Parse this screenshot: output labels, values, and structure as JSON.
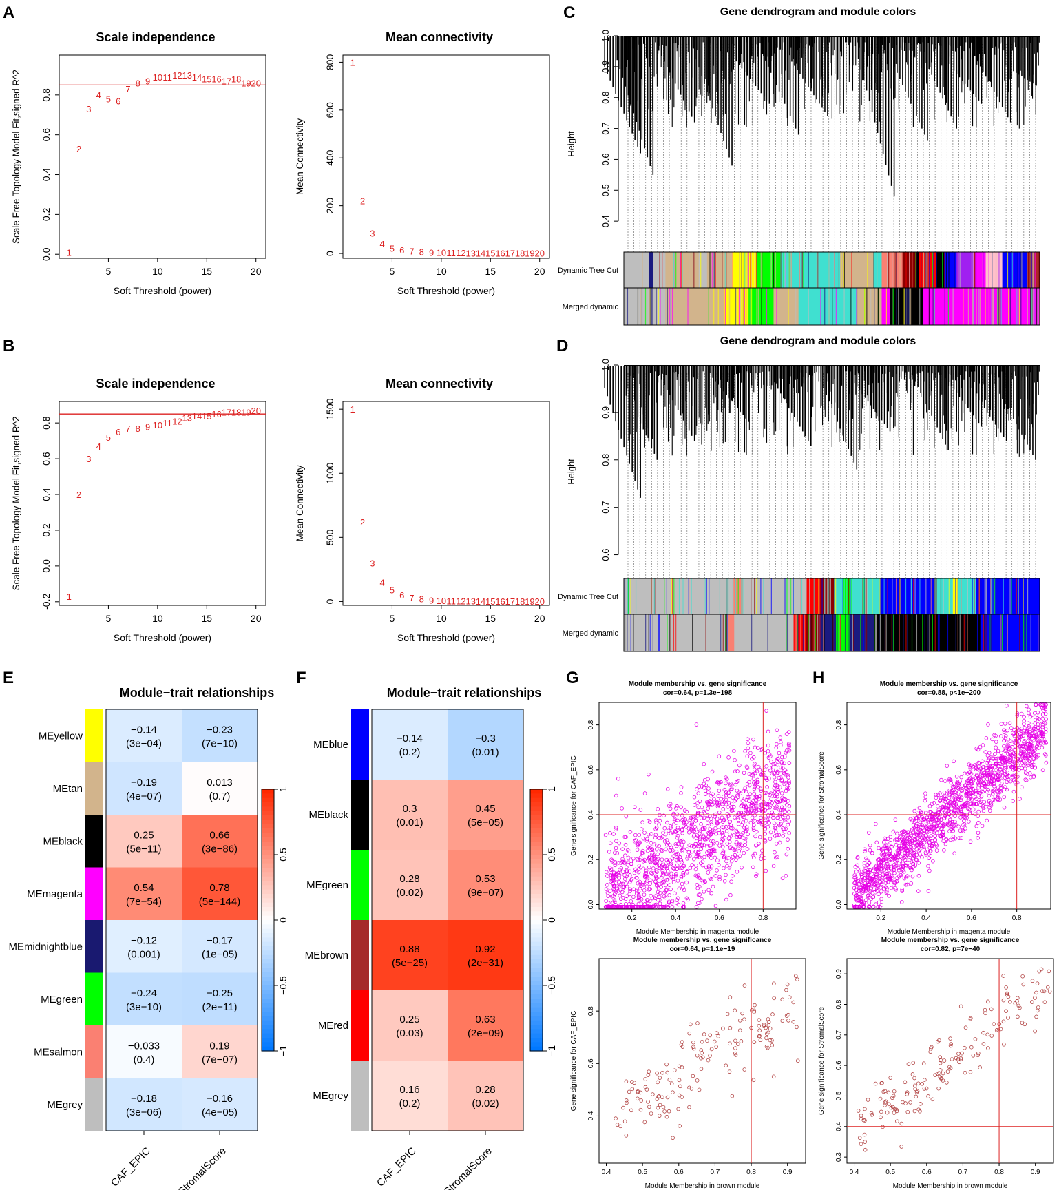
{
  "panel_letters": {
    "A": "A",
    "B": "B",
    "C": "C",
    "D": "D",
    "E": "E",
    "F": "F",
    "G": "G",
    "H": "H"
  },
  "colors": {
    "red": "#dd2222",
    "magenta": "#e600e6",
    "brown_pt": "#b04040",
    "axis": "#000000"
  },
  "chart_data": [
    {
      "id": "A_scale",
      "type": "scatter",
      "title": "Scale independence",
      "xlabel": "Soft Threshold (power)",
      "ylabel": "Scale Free Topology Model Fit,signed R^2",
      "xlim": [
        0,
        21
      ],
      "ylim": [
        -0.02,
        1.0
      ],
      "hline": 0.85,
      "xticks": [
        5,
        10,
        15,
        20
      ],
      "yticks": [
        0.0,
        0.2,
        0.4,
        0.6,
        0.8
      ],
      "ytick_labels": [
        "0.0",
        "0.2",
        "0.4",
        "0.6",
        "0.8"
      ],
      "x": [
        1,
        2,
        3,
        4,
        5,
        6,
        7,
        8,
        9,
        10,
        11,
        12,
        13,
        14,
        15,
        16,
        17,
        18,
        19,
        20
      ],
      "y": [
        0.01,
        0.53,
        0.73,
        0.8,
        0.78,
        0.77,
        0.83,
        0.86,
        0.87,
        0.89,
        0.89,
        0.9,
        0.9,
        0.89,
        0.88,
        0.88,
        0.87,
        0.88,
        0.86,
        0.86
      ]
    },
    {
      "id": "A_conn",
      "type": "scatter",
      "title": "Mean connectivity",
      "xlabel": "Soft Threshold (power)",
      "ylabel": "Mean Connectivity",
      "xlim": [
        0,
        21
      ],
      "ylim": [
        -20,
        830
      ],
      "xticks": [
        5,
        10,
        15,
        20
      ],
      "yticks": [
        0,
        200,
        400,
        600,
        800
      ],
      "ytick_labels": [
        "0",
        "200",
        "400",
        "600",
        "800"
      ],
      "x": [
        1,
        2,
        3,
        4,
        5,
        6,
        7,
        8,
        9,
        10,
        11,
        12,
        13,
        14,
        15,
        16,
        17,
        18,
        19,
        20
      ],
      "y": [
        800,
        220,
        85,
        40,
        22,
        14,
        10,
        7,
        5,
        4,
        3,
        3,
        2,
        2,
        2,
        1,
        1,
        1,
        1,
        1
      ]
    },
    {
      "id": "B_scale",
      "type": "scatter",
      "title": "Scale independence",
      "xlabel": "Soft Threshold (power)",
      "ylabel": "Scale Free Topology Model Fit,signed R^2",
      "xlim": [
        0,
        21
      ],
      "ylim": [
        -0.22,
        0.92
      ],
      "hline": 0.85,
      "xticks": [
        5,
        10,
        15,
        20
      ],
      "yticks": [
        -0.2,
        0.0,
        0.2,
        0.4,
        0.6,
        0.8
      ],
      "ytick_labels": [
        "-0.2",
        "0.0",
        "0.2",
        "0.4",
        "0.6",
        "0.8"
      ],
      "x": [
        1,
        2,
        3,
        4,
        5,
        6,
        7,
        8,
        9,
        10,
        11,
        12,
        13,
        14,
        15,
        16,
        17,
        18,
        19,
        20
      ],
      "y": [
        -0.17,
        0.4,
        0.6,
        0.67,
        0.72,
        0.75,
        0.77,
        0.77,
        0.78,
        0.79,
        0.8,
        0.81,
        0.83,
        0.84,
        0.84,
        0.85,
        0.86,
        0.86,
        0.86,
        0.87
      ]
    },
    {
      "id": "B_conn",
      "type": "scatter",
      "title": "Mean connectivity",
      "xlabel": "Soft Threshold (power)",
      "ylabel": "Mean Connectivity",
      "xlim": [
        0,
        21
      ],
      "ylim": [
        -30,
        1560
      ],
      "xticks": [
        5,
        10,
        15,
        20
      ],
      "yticks": [
        0,
        500,
        1000,
        1500
      ],
      "ytick_labels": [
        "0",
        "500",
        "1000",
        "1500"
      ],
      "x": [
        1,
        2,
        3,
        4,
        5,
        6,
        7,
        8,
        9,
        10,
        11,
        12,
        13,
        14,
        15,
        16,
        17,
        18,
        19,
        20
      ],
      "y": [
        1500,
        620,
        300,
        150,
        90,
        50,
        30,
        20,
        10,
        8,
        6,
        5,
        4,
        3,
        3,
        2,
        2,
        2,
        1,
        1
      ]
    },
    {
      "id": "C_dendro",
      "type": "dendrogram",
      "title": "Gene dendrogram and module colors",
      "ylabel": "Height",
      "ylim": [
        0.3,
        1.0
      ],
      "yticks": [
        0.4,
        0.5,
        0.6,
        0.7,
        0.8,
        0.9,
        1.0
      ],
      "ytick_labels": [
        "0.4",
        "0.5",
        "0.6",
        "0.7",
        "0.8",
        "0.9",
        "1.0"
      ],
      "row_labels": [
        "Dynamic Tree Cut",
        "Merged dynamic"
      ],
      "deep_branches": [
        [
          0.04,
          0.92,
          0.62
        ],
        [
          0.07,
          0.95,
          0.55
        ],
        [
          0.17,
          0.97,
          0.72
        ],
        [
          0.26,
          0.95,
          0.58
        ],
        [
          0.35,
          0.94,
          0.78
        ],
        [
          0.42,
          0.96,
          0.68
        ],
        [
          0.49,
          0.93,
          0.74
        ],
        [
          0.65,
          0.96,
          0.48
        ],
        [
          0.73,
          0.94,
          0.66
        ],
        [
          0.8,
          0.97,
          0.7
        ],
        [
          0.86,
          0.93,
          0.78
        ],
        [
          0.93,
          0.95,
          0.72
        ],
        [
          0.99,
          0.92,
          0.84
        ]
      ],
      "dynamic_colors": [
        "#bebebe",
        "#1a1a80",
        "#bebebe",
        "#d2b48c",
        "#bebebe",
        "#d2b48c",
        "#ffff00",
        "#00ff00",
        "#40e0d0",
        "#d2b48c",
        "#40e0d0",
        "#fa8072",
        "#8b0000",
        "#000000",
        "#ff0000",
        "#000000",
        "#0000ff",
        "#a020f0",
        "#ff00ff",
        "#ffc0cb",
        "#0000ff",
        "#a52a2a"
      ],
      "dynamic_widths": [
        6,
        1,
        3,
        8,
        2,
        6,
        6,
        6,
        14,
        8,
        2,
        5,
        3,
        1,
        4,
        2,
        3,
        4,
        3,
        4,
        6,
        3
      ],
      "merged_colors": [
        "#bebebe",
        "#1a1a80",
        "#bebebe",
        "#d2b48c",
        "#ffff00",
        "#00ff00",
        "#d2b48c",
        "#40e0d0",
        "#d2b48c",
        "#ff00ff",
        "#000000",
        "#ff00ff"
      ],
      "merged_widths": [
        6,
        1,
        3,
        14,
        6,
        6,
        6,
        14,
        6,
        2,
        8,
        28
      ]
    },
    {
      "id": "D_dendro",
      "type": "dendrogram",
      "title": "Gene dendrogram and module colors",
      "ylabel": "Height",
      "ylim": [
        0.55,
        1.0
      ],
      "yticks": [
        0.6,
        0.7,
        0.8,
        0.9,
        1.0
      ],
      "ytick_labels": [
        "0.6",
        "0.7",
        "0.8",
        "0.9",
        "1.0"
      ],
      "row_labels": [
        "Dynamic Tree Cut",
        "Merged dynamic"
      ],
      "deep_branches": [
        [
          0.04,
          0.97,
          0.72
        ],
        [
          0.08,
          0.98,
          0.8
        ],
        [
          0.17,
          0.99,
          0.84
        ],
        [
          0.3,
          0.98,
          0.88
        ],
        [
          0.45,
          0.97,
          0.83
        ],
        [
          0.56,
          0.98,
          0.78
        ],
        [
          0.64,
          0.97,
          0.86
        ],
        [
          0.78,
          0.99,
          0.82
        ],
        [
          0.86,
          0.98,
          0.87
        ],
        [
          0.92,
          0.96,
          0.84
        ],
        [
          0.99,
          0.95,
          0.8
        ]
      ],
      "dynamic_colors": [
        "#bebebe",
        "#fa8072",
        "#bebebe",
        "#ff0000",
        "#8b0000",
        "#40e0d0",
        "#00ff00",
        "#40e0d0",
        "#0000ff",
        "#40e0d0",
        "#ffff00",
        "#40e0d0",
        "#0000ff"
      ],
      "dynamic_widths": [
        24,
        2,
        14,
        3,
        3,
        2,
        2,
        6,
        12,
        4,
        1,
        4,
        14
      ],
      "merged_colors": [
        "#bebebe",
        "#fa8072",
        "#bebebe",
        "#ff0000",
        "#8b0000",
        "#1a1a80",
        "#00ff00",
        "#1a1a80",
        "#000000",
        "#0000ff"
      ],
      "merged_widths": [
        24,
        2,
        14,
        3,
        3,
        4,
        3,
        6,
        25,
        14
      ]
    },
    {
      "id": "E_heat",
      "type": "heatmap",
      "title": "Module−trait relationships",
      "rows": [
        "MEyellow",
        "MEtan",
        "MEblack",
        "MEmagenta",
        "MEmidnightblue",
        "MEgreen",
        "MEsalmon",
        "MEgrey"
      ],
      "row_colors": [
        "#ffff00",
        "#d2b48c",
        "#000000",
        "#ff00ff",
        "#191970",
        "#00ff00",
        "#fa8072",
        "#bebebe"
      ],
      "cols": [
        "CAF_EPIC",
        "StromalScore"
      ],
      "values": [
        [
          -0.14,
          -0.23
        ],
        [
          -0.19,
          0.013
        ],
        [
          0.25,
          0.66
        ],
        [
          0.54,
          0.78
        ],
        [
          -0.12,
          -0.17
        ],
        [
          -0.24,
          -0.25
        ],
        [
          -0.033,
          0.19
        ],
        [
          -0.18,
          -0.16
        ]
      ],
      "cell_text": [
        [
          "−0.14",
          "−0.23"
        ],
        [
          "−0.19",
          "0.013"
        ],
        [
          "0.25",
          "0.66"
        ],
        [
          "0.54",
          "0.78"
        ],
        [
          "−0.12",
          "−0.17"
        ],
        [
          "−0.24",
          "−0.25"
        ],
        [
          "−0.033",
          "0.19"
        ],
        [
          "−0.18",
          "−0.16"
        ]
      ],
      "pvalues": [
        [
          "(3e−04)",
          "(7e−10)"
        ],
        [
          "(4e−07)",
          "(0.7)"
        ],
        [
          "(5e−11)",
          "(3e−86)"
        ],
        [
          "(7e−54)",
          "(5e−144)"
        ],
        [
          "(0.001)",
          "(1e−05)"
        ],
        [
          "(3e−10)",
          "(2e−11)"
        ],
        [
          "(0.4)",
          "(7e−07)"
        ],
        [
          "(3e−06)",
          "(4e−05)"
        ]
      ],
      "colorbar_ticks": [
        1,
        0.5,
        0,
        -0.5,
        -1
      ],
      "colorbar_labels": [
        "1",
        "0.5",
        "0",
        "−0.5",
        "−1"
      ]
    },
    {
      "id": "F_heat",
      "type": "heatmap",
      "title": "Module−trait relationships",
      "rows": [
        "MEblue",
        "MEblack",
        "MEgreen",
        "MEbrown",
        "MEred",
        "MEgrey"
      ],
      "row_colors": [
        "#0000ff",
        "#000000",
        "#00ff00",
        "#a52a2a",
        "#ff0000",
        "#bebebe"
      ],
      "cols": [
        "CAF_EPIC",
        "StromalScore"
      ],
      "values": [
        [
          -0.14,
          -0.3
        ],
        [
          0.3,
          0.45
        ],
        [
          0.28,
          0.53
        ],
        [
          0.88,
          0.92
        ],
        [
          0.25,
          0.63
        ],
        [
          0.16,
          0.28
        ]
      ],
      "cell_text": [
        [
          "−0.14",
          "−0.3"
        ],
        [
          "0.3",
          "0.45"
        ],
        [
          "0.28",
          "0.53"
        ],
        [
          "0.88",
          "0.92"
        ],
        [
          "0.25",
          "0.63"
        ],
        [
          "0.16",
          "0.28"
        ]
      ],
      "pvalues": [
        [
          "(0.2)",
          "(0.01)"
        ],
        [
          "(0.01)",
          "(5e−05)"
        ],
        [
          "(0.02)",
          "(9e−07)"
        ],
        [
          "(5e−25)",
          "(2e−31)"
        ],
        [
          "(0.03)",
          "(2e−09)"
        ],
        [
          "(0.2)",
          "(0.02)"
        ]
      ],
      "colorbar_ticks": [
        1,
        0.5,
        0,
        -0.5,
        -1
      ],
      "colorbar_labels": [
        "1",
        "0.5",
        "0",
        "−0.5",
        "−1"
      ]
    },
    {
      "id": "G_top",
      "type": "scatter",
      "title": "Module membership vs. gene significance",
      "subtitle": "cor=0.64, p=1.3e−198",
      "xlabel": "Module Membership in magenta module",
      "ylabel": "Gene significance for  CAF_EPIC",
      "xlim": [
        0.05,
        0.95
      ],
      "ylim": [
        -0.02,
        0.9
      ],
      "vline": 0.8,
      "hline": 0.4,
      "xticks": [
        0.2,
        0.4,
        0.6,
        0.8
      ],
      "yticks": [
        0.0,
        0.2,
        0.4,
        0.6,
        0.8
      ],
      "xtick_labels": [
        "0.2",
        "0.4",
        "0.6",
        "0.8"
      ],
      "ytick_labels": [
        "0.0",
        "0.2",
        "0.4",
        "0.6",
        "0.8"
      ],
      "point_color": "#e600e6",
      "n_points": 1300,
      "gen": {
        "seed": 11,
        "a": -0.02,
        "b": 0.6,
        "sd": 0.14,
        "xmin": 0.08,
        "xmax": 0.92
      }
    },
    {
      "id": "H_top",
      "type": "scatter",
      "title": "Module membership vs. gene significance",
      "subtitle": "cor=0.88, p<1e−200",
      "xlabel": "Module Membership in magenta module",
      "ylabel": "Gene significance for  StromalScore",
      "xlim": [
        0.05,
        0.95
      ],
      "ylim": [
        -0.02,
        0.9
      ],
      "vline": 0.8,
      "hline": 0.4,
      "xticks": [
        0.2,
        0.4,
        0.6,
        0.8
      ],
      "yticks": [
        0.0,
        0.2,
        0.4,
        0.6,
        0.8
      ],
      "xtick_labels": [
        "0.2",
        "0.4",
        "0.6",
        "0.8"
      ],
      "ytick_labels": [
        "0.0",
        "0.2",
        "0.4",
        "0.6",
        "0.8"
      ],
      "point_color": "#e600e6",
      "n_points": 1500,
      "gen": {
        "seed": 23,
        "a": -0.02,
        "b": 0.86,
        "sd": 0.075,
        "xmin": 0.08,
        "xmax": 0.93
      }
    },
    {
      "id": "G_bot",
      "type": "scatter",
      "title": "Module membership vs. gene significance",
      "subtitle": "cor=0.64, p=1.1e−19",
      "xlabel": "Module Membership in brown module",
      "ylabel": "Gene significance for  CAF_EPIC",
      "xlim": [
        0.38,
        0.95
      ],
      "ylim": [
        0.22,
        1.0
      ],
      "vline": 0.8,
      "hline": 0.4,
      "xticks": [
        0.4,
        0.5,
        0.6,
        0.7,
        0.8,
        0.9
      ],
      "yticks": [
        0.4,
        0.6,
        0.8
      ],
      "xtick_labels": [
        "0.4",
        "0.5",
        "0.6",
        "0.7",
        "0.8",
        "0.9"
      ],
      "ytick_labels": [
        "0.4",
        "0.6",
        "0.8"
      ],
      "point_color": "#b04040",
      "n_points": 160,
      "gen": {
        "seed": 37,
        "a": 0.05,
        "b": 0.82,
        "sd": 0.085,
        "xmin": 0.42,
        "xmax": 0.93
      }
    },
    {
      "id": "H_bot",
      "type": "scatter",
      "title": "Module membership vs. gene significance",
      "subtitle": "cor=0.82, p=7e−40",
      "xlabel": "Module Membership in brown module",
      "ylabel": "Gene significance for  StromalScore",
      "xlim": [
        0.38,
        0.95
      ],
      "ylim": [
        0.28,
        0.95
      ],
      "vline": 0.8,
      "hline": 0.4,
      "xticks": [
        0.4,
        0.5,
        0.6,
        0.7,
        0.8,
        0.9
      ],
      "yticks": [
        0.3,
        0.4,
        0.5,
        0.6,
        0.7,
        0.8,
        0.9
      ],
      "xtick_labels": [
        "0.4",
        "0.5",
        "0.6",
        "0.7",
        "0.8",
        "0.9"
      ],
      "ytick_labels": [
        "0.3",
        "0.4",
        "0.5",
        "0.6",
        "0.7",
        "0.8",
        "0.9"
      ],
      "point_color": "#b04040",
      "n_points": 170,
      "gen": {
        "seed": 51,
        "a": 0.0,
        "b": 0.93,
        "sd": 0.05,
        "xmin": 0.41,
        "xmax": 0.94
      }
    }
  ]
}
